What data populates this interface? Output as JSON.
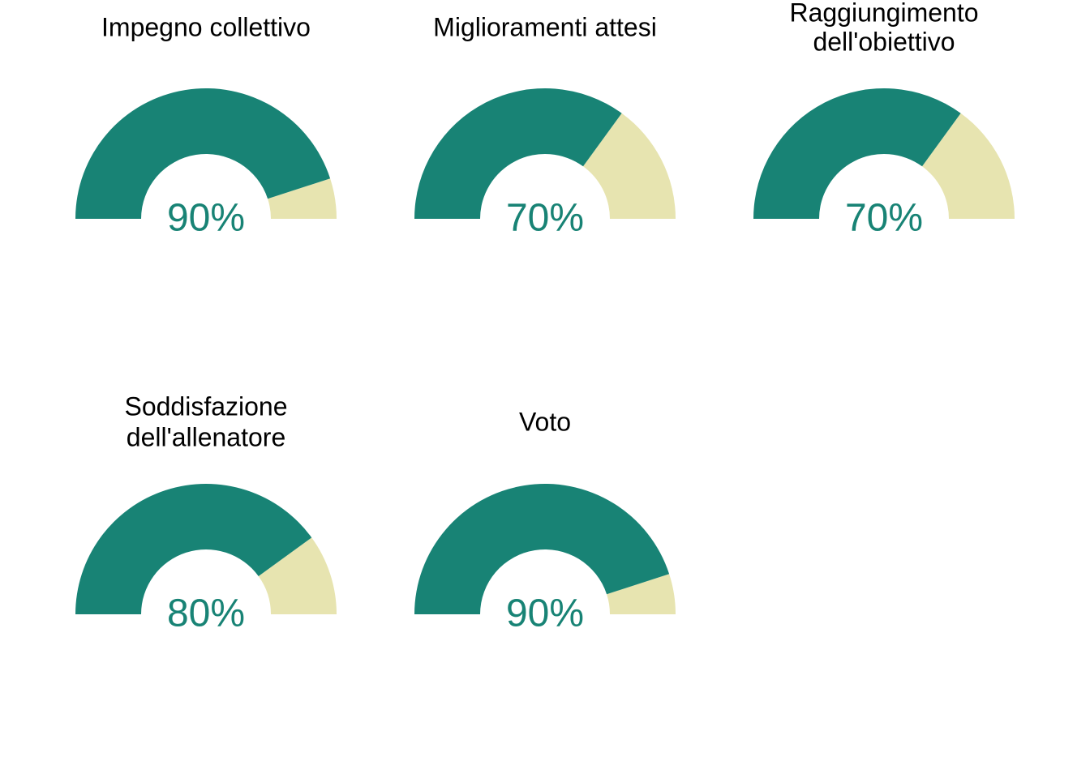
{
  "colors": {
    "filled": "#188375",
    "remaining": "#E7E4B0",
    "label": "#188375"
  },
  "chart_data": [
    {
      "type": "gauge",
      "title_lines": [
        "Impegno collettivo"
      ],
      "value": 90,
      "max": 100,
      "label": "90%"
    },
    {
      "type": "gauge",
      "title_lines": [
        "Miglioramenti attesi"
      ],
      "value": 70,
      "max": 100,
      "label": "70%"
    },
    {
      "type": "gauge",
      "title_lines": [
        "Raggiungimento",
        "dell'obiettivo"
      ],
      "value": 70,
      "max": 100,
      "label": "70%"
    },
    {
      "type": "gauge",
      "title_lines": [
        "Soddisfazione",
        "dell'allenatore"
      ],
      "value": 80,
      "max": 100,
      "label": "80%"
    },
    {
      "type": "gauge",
      "title_lines": [
        "Voto"
      ],
      "value": 90,
      "max": 100,
      "label": "90%"
    }
  ]
}
